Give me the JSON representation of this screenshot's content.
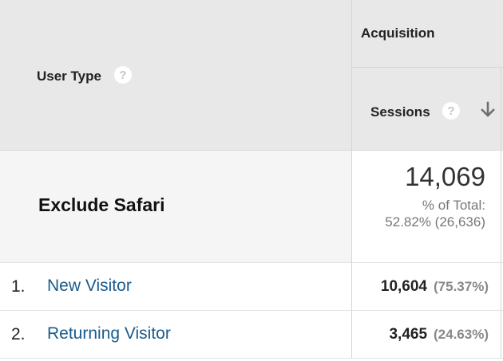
{
  "header": {
    "dimension_label": "User Type",
    "group_label": "Acquisition",
    "metric_label": "Sessions",
    "help_icon_text": "?"
  },
  "summary": {
    "segment_name": "Exclude Safari",
    "total_value": "14,069",
    "percent_label": "% of Total:",
    "percent_detail": "52.82% (26,636)"
  },
  "rows": [
    {
      "index": "1.",
      "label": "New Visitor",
      "value": "10,604",
      "percent": "(75.37%)"
    },
    {
      "index": "2.",
      "label": "Returning Visitor",
      "value": "3,465",
      "percent": "(24.63%)"
    }
  ],
  "icons": {
    "help": "help-icon",
    "sort": "arrow-down-icon"
  },
  "colors": {
    "header_bg": "#e8e8e8",
    "link": "#1a5b8c",
    "summary_bg": "#f5f5f5"
  }
}
